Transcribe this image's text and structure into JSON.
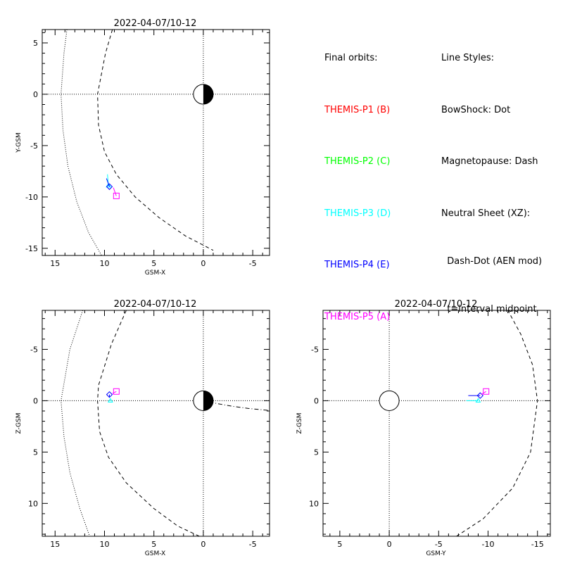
{
  "legend": {
    "orbits_title": "Final orbits:",
    "orbits": [
      {
        "label": "THEMIS-P1 (B)",
        "color": "#ff0000"
      },
      {
        "label": "THEMIS-P2 (C)",
        "color": "#00ff00"
      },
      {
        "label": "THEMIS-P3 (D)",
        "color": "#00ffff"
      },
      {
        "label": "THEMIS-P4 (E)",
        "color": "#0000ff"
      },
      {
        "label": "THEMIS-P5 (A)",
        "color": "#ff00ff"
      }
    ],
    "styles_title": "Line Styles:",
    "styles": [
      "BowShock: Dot",
      "Magnetopause: Dash",
      "Neutral Sheet (XZ):",
      "  Dash-Dot (AEN mod)",
      "  t=interval midpoint"
    ]
  },
  "colors": {
    "p3": "#00ffff",
    "p4": "#0000ff",
    "p5": "#ff00ff",
    "axis": "#000000"
  },
  "chart_data": [
    {
      "id": "xy",
      "type": "line",
      "title": "2022-04-07/10-12",
      "xlabel": "GSM-X",
      "ylabel": "Y-GSM",
      "xlim": [
        16.3,
        -6.7
      ],
      "ylim": [
        6.3,
        -15.7
      ],
      "xticks": [
        15,
        10,
        5,
        0,
        -5
      ],
      "yticks": [
        5,
        0,
        -5,
        -10,
        -15
      ],
      "grid": false,
      "earth": "half-shaded",
      "bow_shock": [
        [
          13.8,
          6.3
        ],
        [
          14.1,
          4.0
        ],
        [
          14.4,
          0.0
        ],
        [
          14.2,
          -3.5
        ],
        [
          13.7,
          -7.0
        ],
        [
          12.8,
          -10.5
        ],
        [
          11.6,
          -13.5
        ],
        [
          10.3,
          -15.7
        ]
      ],
      "magnetopause": [
        [
          9.2,
          6.3
        ],
        [
          9.9,
          4.0
        ],
        [
          10.7,
          0.0
        ],
        [
          10.6,
          -3.0
        ],
        [
          10.0,
          -5.6
        ],
        [
          8.8,
          -7.8
        ],
        [
          6.9,
          -10.0
        ],
        [
          4.5,
          -12.0
        ],
        [
          1.8,
          -13.8
        ],
        [
          -1.0,
          -15.2
        ]
      ],
      "series": [
        {
          "name": "THEMIS-P3 (D)",
          "color": "#00ffff",
          "points": [
            [
              9.7,
              -7.8
            ],
            [
              9.6,
              -8.9
            ]
          ],
          "marker": "triangle"
        },
        {
          "name": "THEMIS-P4 (E)",
          "color": "#0000ff",
          "points": [
            [
              9.8,
              -8.2
            ],
            [
              9.5,
              -9.0
            ]
          ],
          "marker": "diamond"
        },
        {
          "name": "THEMIS-P5 (A)",
          "color": "#ff00ff",
          "points": [
            [
              9.1,
              -9.1
            ],
            [
              8.8,
              -9.9
            ]
          ],
          "marker": "square"
        }
      ]
    },
    {
      "id": "xz",
      "type": "line",
      "title": "2022-04-07/10-12",
      "xlabel": "GSM-X",
      "ylabel": "Z-GSM",
      "xlim": [
        16.3,
        -6.7
      ],
      "ylim": [
        -8.8,
        13.2
      ],
      "xticks": [
        15,
        10,
        5,
        0,
        -5
      ],
      "yticks": [
        -5,
        0,
        5,
        10
      ],
      "grid": false,
      "earth": "half-shaded",
      "bow_shock": [
        [
          12.2,
          -8.8
        ],
        [
          13.5,
          -5.0
        ],
        [
          14.4,
          0.0
        ],
        [
          14.1,
          3.5
        ],
        [
          13.5,
          7.0
        ],
        [
          12.5,
          10.5
        ],
        [
          11.5,
          13.2
        ]
      ],
      "magnetopause": [
        [
          7.8,
          -8.8
        ],
        [
          9.3,
          -5.5
        ],
        [
          10.6,
          -1.5
        ],
        [
          10.7,
          0.0
        ],
        [
          10.5,
          3.0
        ],
        [
          9.6,
          5.5
        ],
        [
          7.8,
          8.0
        ],
        [
          5.0,
          10.5
        ],
        [
          2.6,
          12.2
        ],
        [
          0.4,
          13.2
        ]
      ],
      "neutral_sheet": [
        [
          -0.6,
          0.1
        ],
        [
          -1.5,
          0.3
        ],
        [
          -3.0,
          0.55
        ],
        [
          -4.5,
          0.75
        ],
        [
          -6.7,
          0.95
        ]
      ],
      "series": [
        {
          "name": "THEMIS-P3 (D)",
          "color": "#00ffff",
          "points": [
            [
              9.5,
              -0.1
            ],
            [
              9.4,
              0.0
            ]
          ],
          "marker": "triangle"
        },
        {
          "name": "THEMIS-P4 (E)",
          "color": "#0000ff",
          "points": [
            [
              9.5,
              -0.4
            ],
            [
              9.5,
              -0.6
            ]
          ],
          "marker": "diamond"
        },
        {
          "name": "THEMIS-P5 (A)",
          "color": "#ff00ff",
          "points": [
            [
              9.2,
              -0.7
            ],
            [
              8.8,
              -0.9
            ]
          ],
          "marker": "square"
        }
      ]
    },
    {
      "id": "yz",
      "type": "line",
      "title": "2022-04-07/10-12",
      "xlabel": "GSM-Y",
      "ylabel": "Z-GSM",
      "xlim": [
        6.7,
        -16.3
      ],
      "ylim": [
        -8.8,
        13.2
      ],
      "xticks": [
        5,
        0,
        -5,
        -10,
        -15
      ],
      "yticks": [
        -5,
        0,
        5,
        10
      ],
      "grid": false,
      "earth": "open",
      "magnetopause": [
        [
          -6.8,
          13.2
        ],
        [
          -9.5,
          11.5
        ],
        [
          -12.5,
          8.5
        ],
        [
          -14.3,
          5.0
        ],
        [
          -15.0,
          0.0
        ],
        [
          -14.5,
          -3.5
        ],
        [
          -13.3,
          -6.5
        ],
        [
          -12.0,
          -8.8
        ]
      ],
      "series": [
        {
          "name": "THEMIS-P3 (D)",
          "color": "#00ffff",
          "points": [
            [
              -7.8,
              0.0
            ],
            [
              -9.0,
              0.0
            ]
          ],
          "marker": "triangle"
        },
        {
          "name": "THEMIS-P4 (E)",
          "color": "#0000ff",
          "points": [
            [
              -8.0,
              -0.5
            ],
            [
              -9.2,
              -0.5
            ]
          ],
          "marker": "diamond"
        },
        {
          "name": "THEMIS-P5 (A)",
          "color": "#ff00ff",
          "points": [
            [
              -9.3,
              -0.6
            ],
            [
              -9.8,
              -0.9
            ]
          ],
          "marker": "square"
        }
      ]
    }
  ]
}
